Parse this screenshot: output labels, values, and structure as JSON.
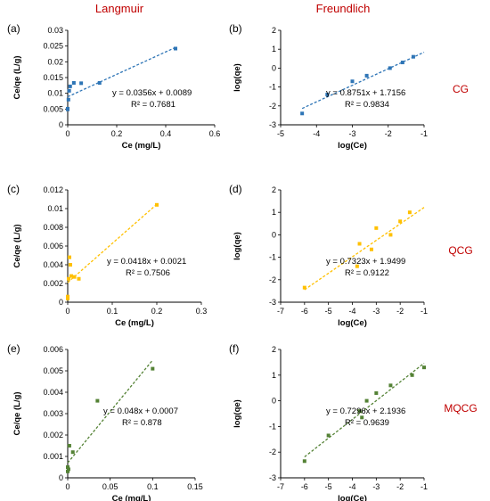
{
  "headers": {
    "left": "Langmuir",
    "right": "Freundlich"
  },
  "row_labels": [
    "CG",
    "QCG",
    "MQCG"
  ],
  "chart_data": [
    {
      "id": "a",
      "panel": "(a)",
      "type": "scatter",
      "color": "#2e75b6",
      "xlabel": "Ce (mg/L)",
      "ylabel": "Ce/qe (L/g)",
      "xlim": [
        0,
        0.6
      ],
      "ylim": [
        0,
        0.03
      ],
      "xticks": [
        0,
        0.2,
        0.4,
        0.6
      ],
      "xtick_labels": [
        "0",
        "0.2",
        "0.4",
        "0.6"
      ],
      "yticks": [
        0,
        0.005,
        0.01,
        0.015,
        0.02,
        0.025,
        0.03
      ],
      "ytick_labels": [
        "0",
        "0.005",
        "0.01",
        "0.015",
        "0.02",
        "0.025",
        "0.03"
      ],
      "points": [
        [
          0.0,
          0.0049
        ],
        [
          0.0,
          0.0051
        ],
        [
          0.003,
          0.008
        ],
        [
          0.006,
          0.0108
        ],
        [
          0.01,
          0.0122
        ],
        [
          0.025,
          0.0133
        ],
        [
          0.055,
          0.0132
        ],
        [
          0.13,
          0.0133
        ],
        [
          0.44,
          0.0242
        ]
      ],
      "trend": {
        "slope": 0.0356,
        "intercept": 0.0089,
        "x_range": [
          0,
          0.44
        ]
      },
      "equation": "y = 0.0356x + 0.0089",
      "r2": "R² = 0.7681"
    },
    {
      "id": "b",
      "panel": "(b)",
      "type": "scatter",
      "color": "#2e75b6",
      "xlabel": "log(Ce)",
      "ylabel": "log(qe)",
      "xlim": [
        -5,
        -1
      ],
      "ylim": [
        -3,
        2
      ],
      "xticks": [
        -5,
        -4,
        -3,
        -2,
        -1
      ],
      "xtick_labels": [
        "-5",
        "-4",
        "-3",
        "-2",
        "-1"
      ],
      "yticks": [
        -3,
        -2,
        -1,
        0,
        1,
        2
      ],
      "ytick_labels": [
        "-3",
        "-2",
        "-1",
        "0",
        "1",
        "2"
      ],
      "points": [
        [
          -4.4,
          -2.4
        ],
        [
          -3.7,
          -1.4
        ],
        [
          -3.0,
          -0.7
        ],
        [
          -2.6,
          -0.4
        ],
        [
          -1.95,
          0.0
        ],
        [
          -1.6,
          0.3
        ],
        [
          -1.3,
          0.6
        ]
      ],
      "trend": {
        "slope": 0.8751,
        "intercept": 1.7156,
        "x_range": [
          -4.4,
          -1.0
        ]
      },
      "equation": "y = 0.8751x + 1.7156",
      "r2": "R² = 0.9834"
    },
    {
      "id": "c",
      "panel": "(c)",
      "type": "scatter",
      "color": "#ffc000",
      "xlabel": "Ce (mg/L)",
      "ylabel": "Ce/qe (L/g)",
      "xlim": [
        0,
        0.3
      ],
      "ylim": [
        0,
        0.012
      ],
      "xticks": [
        0,
        0.1,
        0.2,
        0.3
      ],
      "xtick_labels": [
        "0",
        "0.1",
        "0.2",
        "0.3"
      ],
      "yticks": [
        0,
        0.002,
        0.004,
        0.006,
        0.008,
        0.01,
        0.012
      ],
      "ytick_labels": [
        "0",
        "0.002",
        "0.004",
        "0.006",
        "0.008",
        "0.01",
        "0.012"
      ],
      "points": [
        [
          0.0,
          0.0004
        ],
        [
          0.0,
          0.0006
        ],
        [
          0.002,
          0.0025
        ],
        [
          0.004,
          0.0048
        ],
        [
          0.006,
          0.004
        ],
        [
          0.008,
          0.0028
        ],
        [
          0.015,
          0.0027
        ],
        [
          0.025,
          0.0025
        ],
        [
          0.2,
          0.0104
        ]
      ],
      "trend": {
        "slope": 0.0418,
        "intercept": 0.0021,
        "x_range": [
          0,
          0.2
        ]
      },
      "equation": "y = 0.0418x + 0.0021",
      "r2": "R² = 0.7506"
    },
    {
      "id": "d",
      "panel": "(d)",
      "type": "scatter",
      "color": "#ffc000",
      "xlabel": "log(Ce)",
      "ylabel": "log(qe)",
      "xlim": [
        -7,
        -1
      ],
      "ylim": [
        -3,
        2
      ],
      "xticks": [
        -7,
        -6,
        -5,
        -4,
        -3,
        -2,
        -1
      ],
      "xtick_labels": [
        "-7",
        "-6",
        "-5",
        "-4",
        "-3",
        "-2",
        "-1"
      ],
      "yticks": [
        -3,
        -2,
        -1,
        0,
        1,
        2
      ],
      "ytick_labels": [
        "-3",
        "-2",
        "-1",
        "0",
        "1",
        "2"
      ],
      "points": [
        [
          -6.0,
          -2.35
        ],
        [
          -3.8,
          -1.4
        ],
        [
          -3.7,
          -0.4
        ],
        [
          -3.2,
          -0.65
        ],
        [
          -3.0,
          0.3
        ],
        [
          -2.4,
          0.0
        ],
        [
          -2.0,
          0.6
        ],
        [
          -1.6,
          1.0
        ]
      ],
      "trend": {
        "slope": 0.7323,
        "intercept": 1.9499,
        "x_range": [
          -6.0,
          -1.0
        ]
      },
      "equation": "y = 0.7323x + 1.9499",
      "r2": "R² = 0.9122"
    },
    {
      "id": "e",
      "panel": "(e)",
      "type": "scatter",
      "color": "#548235",
      "xlabel": "Ce (mg/L)",
      "ylabel": "Ce/qe (L/g)",
      "xlim": [
        0,
        0.15
      ],
      "ylim": [
        0,
        0.006
      ],
      "xticks": [
        0,
        0.05,
        0.1,
        0.15
      ],
      "xtick_labels": [
        "0",
        "0.05",
        "0.1",
        "0.15"
      ],
      "yticks": [
        0,
        0.001,
        0.002,
        0.003,
        0.004,
        0.005,
        0.006
      ],
      "ytick_labels": [
        "0",
        "0.001",
        "0.002",
        "0.003",
        "0.004",
        "0.005",
        "0.006"
      ],
      "points": [
        [
          0.0,
          0.0003
        ],
        [
          0.0,
          0.0005
        ],
        [
          0.001,
          0.0004
        ],
        [
          0.002,
          0.0015
        ],
        [
          0.006,
          0.0012
        ],
        [
          0.035,
          0.0036
        ],
        [
          0.1,
          0.0051
        ]
      ],
      "trend": {
        "slope": 0.048,
        "intercept": 0.0007,
        "x_range": [
          0,
          0.1
        ]
      },
      "equation": "y = 0.048x + 0.0007",
      "r2": "R² = 0.878"
    },
    {
      "id": "f",
      "panel": "(f)",
      "type": "scatter",
      "color": "#548235",
      "xlabel": "log(Ce)",
      "ylabel": "log(qe)",
      "xlim": [
        -7,
        -1
      ],
      "ylim": [
        -3,
        2
      ],
      "xticks": [
        -7,
        -6,
        -5,
        -4,
        -3,
        -2,
        -1
      ],
      "xtick_labels": [
        "-7",
        "-6",
        "-5",
        "-4",
        "-3",
        "-2",
        "-1"
      ],
      "yticks": [
        -3,
        -2,
        -1,
        0,
        1,
        2
      ],
      "ytick_labels": [
        "-3",
        "-2",
        "-1",
        "0",
        "1",
        "2"
      ],
      "points": [
        [
          -6.0,
          -2.35
        ],
        [
          -5.0,
          -1.35
        ],
        [
          -3.7,
          -0.4
        ],
        [
          -3.6,
          -0.65
        ],
        [
          -3.4,
          0.0
        ],
        [
          -3.0,
          0.3
        ],
        [
          -2.4,
          0.6
        ],
        [
          -1.5,
          1.0
        ],
        [
          -1.0,
          1.3
        ]
      ],
      "trend": {
        "slope": 0.7296,
        "intercept": 2.1936,
        "x_range": [
          -6.0,
          -1.0
        ]
      },
      "equation": "y = 0.7296x + 2.1936",
      "r2": "R² = 0.9639"
    }
  ]
}
